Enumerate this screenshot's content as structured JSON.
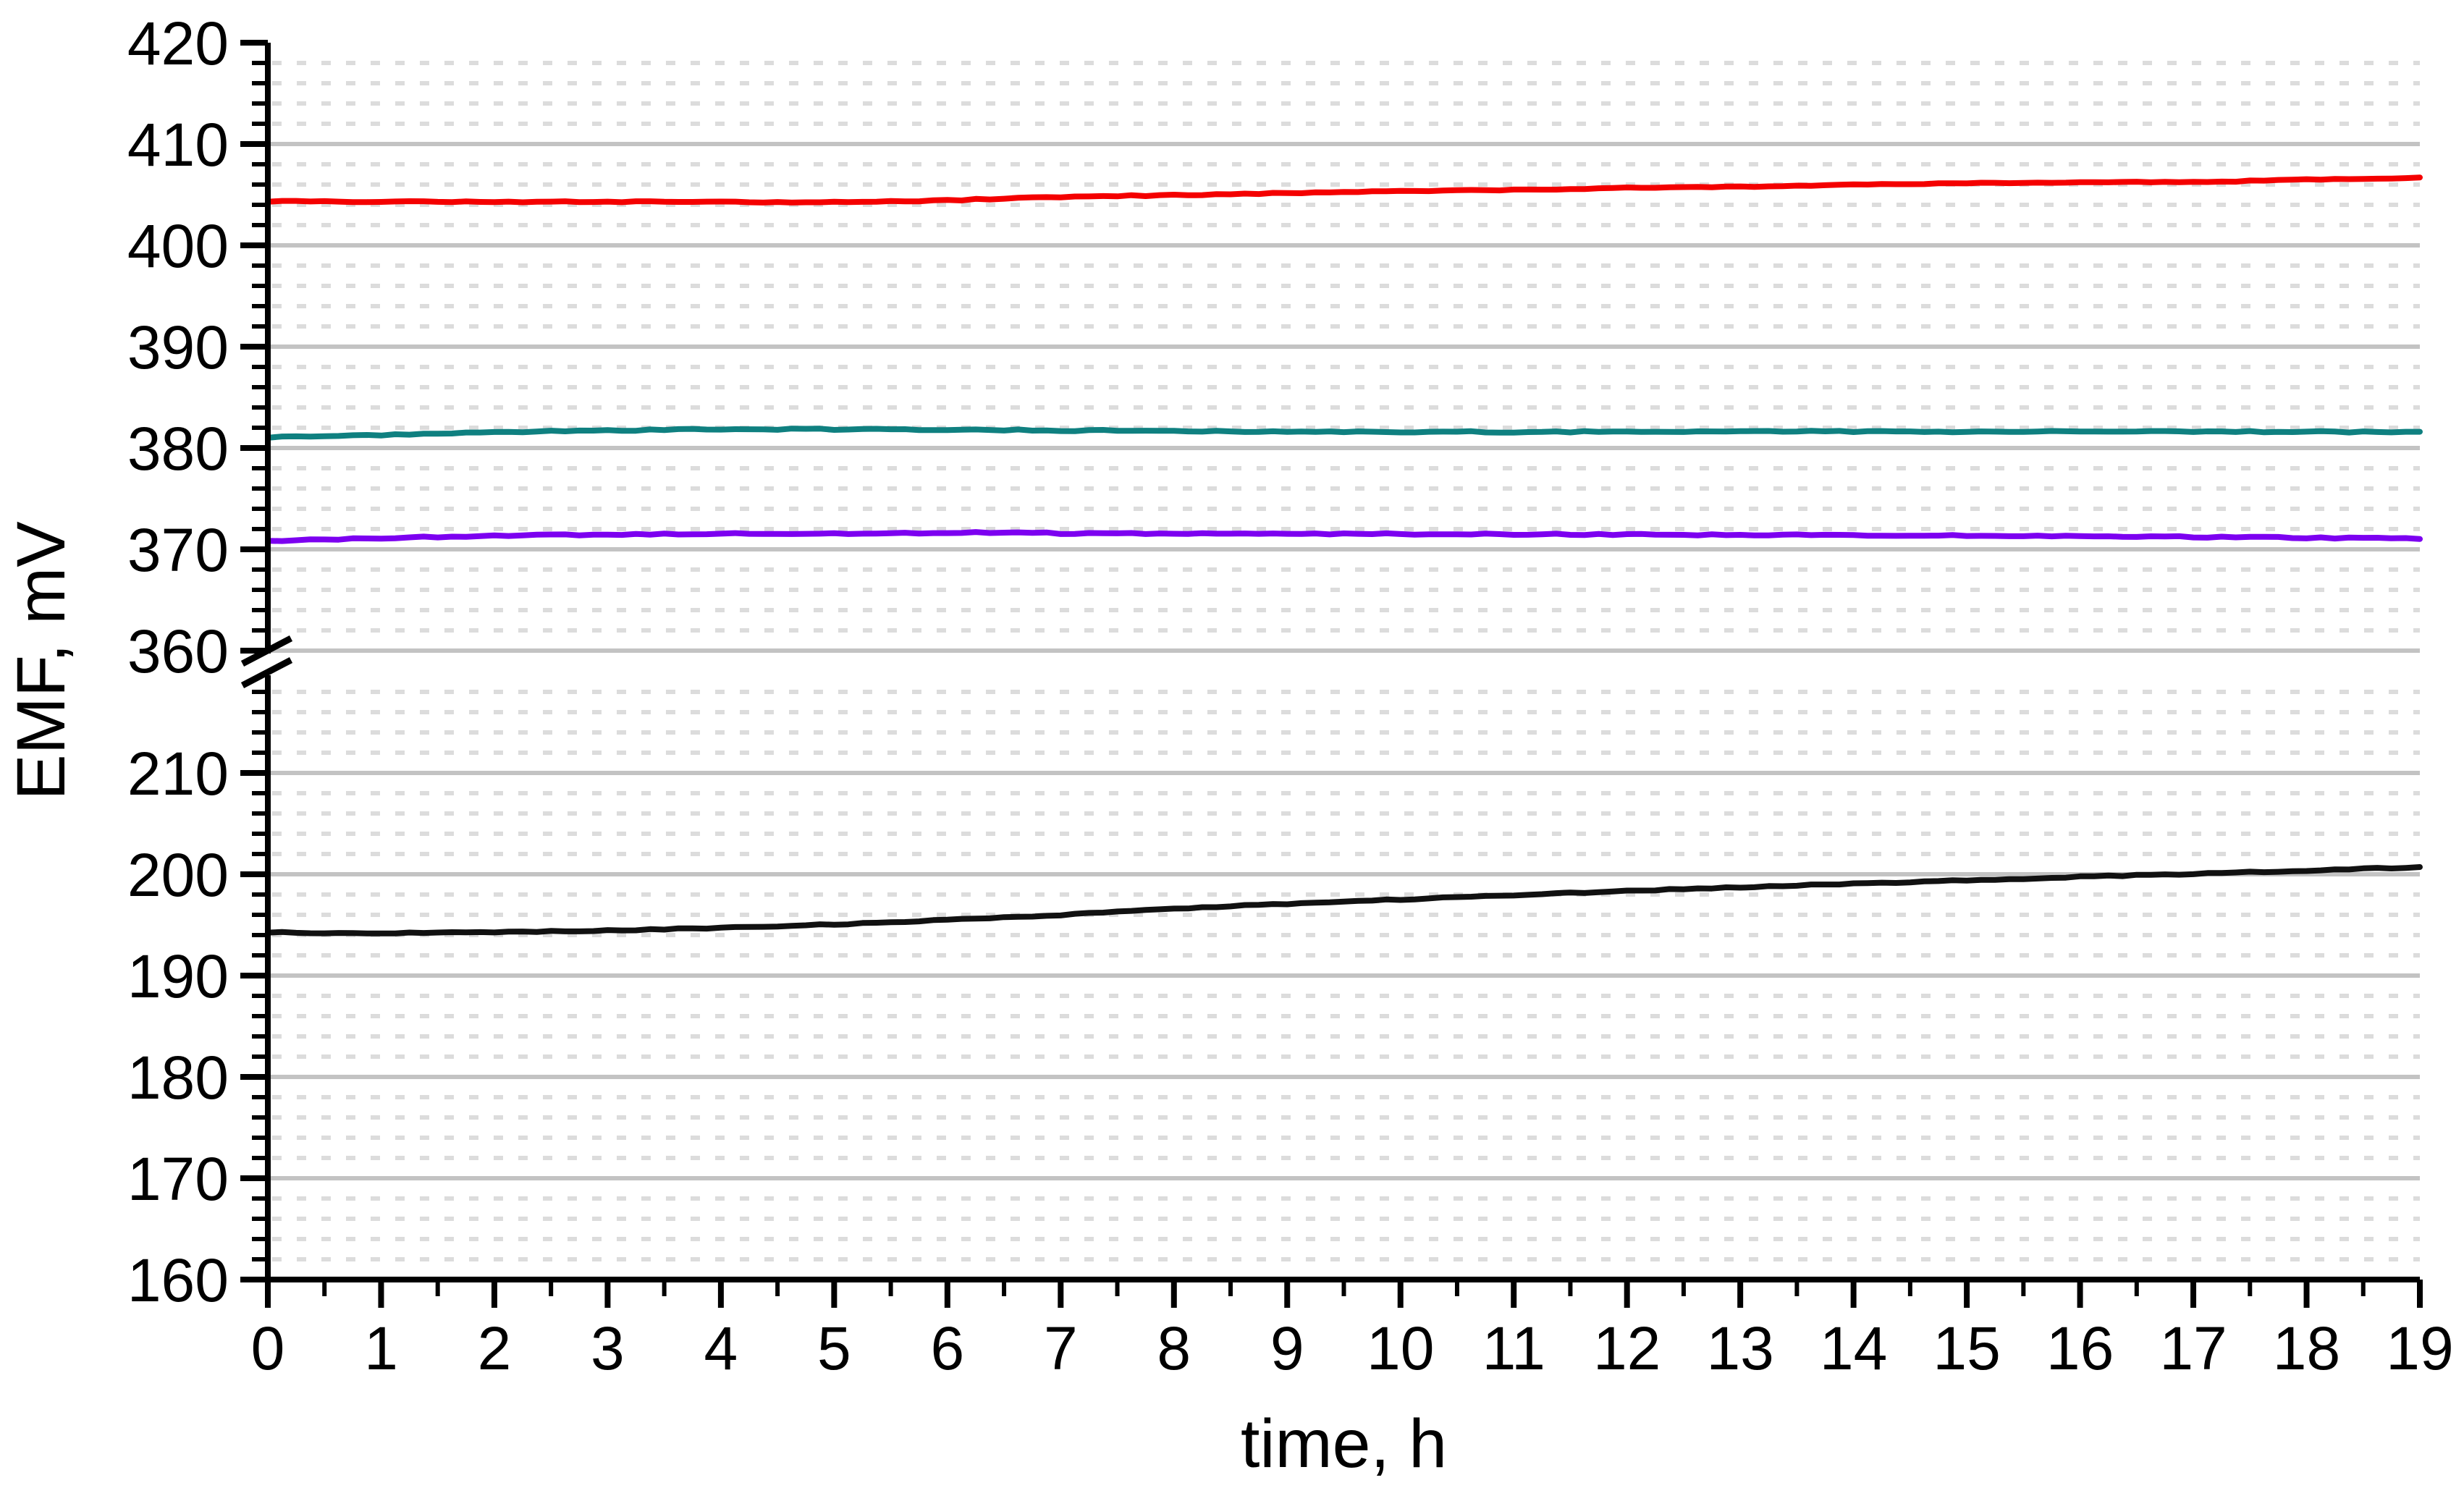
{
  "figure": {
    "background": "#ffffff",
    "plot_background": "#ffffff",
    "axis_color": "#000000",
    "major_grid_color": "#c3c3c3",
    "minor_grid_color": "#dcdcdc"
  },
  "chart_data": {
    "type": "line",
    "title": "",
    "xlabel": "time, h",
    "ylabel": "EMF, mV",
    "x_range": [
      0,
      19
    ],
    "x_major_ticks": [
      0,
      1,
      2,
      3,
      4,
      5,
      6,
      7,
      8,
      9,
      10,
      11,
      12,
      13,
      14,
      15,
      16,
      17,
      18,
      19
    ],
    "x_minor_step": 0.5,
    "grid": {
      "major_solid": true,
      "minor_dotted": true,
      "vertical": false
    },
    "legend": "none",
    "y_axis_break": {
      "upper_range": [
        360,
        420
      ],
      "lower_range": [
        160,
        220
      ],
      "upper_major_ticks": [
        420,
        410,
        400,
        390,
        380,
        370,
        360
      ],
      "lower_major_ticks": [
        210,
        200,
        190,
        180,
        170,
        160
      ],
      "minor_step": 2,
      "break_marker": "double-slash"
    },
    "x_sample_step": 0.5,
    "series": [
      {
        "name": "red",
        "color": "#f40000",
        "noise_mv": 0.06,
        "values": [
          404.36,
          404.33,
          404.31,
          404.32,
          404.3,
          404.31,
          404.29,
          404.31,
          404.28,
          404.26,
          404.3,
          404.36,
          404.44,
          404.62,
          404.76,
          404.86,
          404.97,
          405.06,
          405.15,
          405.24,
          405.33,
          405.41,
          405.5,
          405.58,
          405.66,
          405.74,
          405.81,
          405.89,
          405.96,
          406.04,
          406.11,
          406.18,
          406.25,
          406.28,
          406.25,
          406.36,
          406.48,
          406.6,
          406.68
        ]
      },
      {
        "name": "teal",
        "color": "#0f8080",
        "noise_mv": 0.07,
        "values": [
          381.05,
          381.16,
          381.28,
          381.42,
          381.55,
          381.66,
          381.74,
          381.8,
          381.84,
          381.85,
          381.84,
          381.82,
          381.8,
          381.77,
          381.74,
          381.71,
          381.68,
          381.65,
          381.63,
          381.61,
          381.6,
          381.59,
          381.59,
          381.6,
          381.61,
          381.62,
          381.63,
          381.63,
          381.62,
          381.61,
          381.6,
          381.61,
          381.62,
          381.63,
          381.62,
          381.61,
          381.6,
          381.59,
          381.57
        ]
      },
      {
        "name": "violet",
        "color": "#7c00f0",
        "noise_mv": 0.07,
        "values": [
          370.82,
          370.96,
          371.1,
          371.22,
          371.33,
          371.41,
          371.47,
          371.51,
          371.54,
          371.55,
          371.56,
          371.57,
          371.58,
          371.7,
          371.57,
          371.55,
          371.55,
          371.54,
          371.54,
          371.53,
          371.52,
          371.51,
          371.5,
          371.48,
          371.46,
          371.44,
          371.42,
          371.4,
          371.38,
          371.36,
          371.33,
          371.3,
          371.28,
          371.25,
          371.22,
          371.18,
          371.14,
          371.09,
          371.04
        ]
      },
      {
        "name": "black",
        "color": "#111111",
        "noise_mv": 0.06,
        "values": [
          194.25,
          194.22,
          194.2,
          194.23,
          194.28,
          194.36,
          194.46,
          194.58,
          194.72,
          194.88,
          195.06,
          195.28,
          195.5,
          195.74,
          195.98,
          196.3,
          196.6,
          196.85,
          197.08,
          197.3,
          197.52,
          197.74,
          197.95,
          198.15,
          198.35,
          198.54,
          198.72,
          198.9,
          199.07,
          199.24,
          199.4,
          199.56,
          199.75,
          199.9,
          200.05,
          200.22,
          200.38,
          200.55,
          200.7
        ]
      }
    ]
  }
}
